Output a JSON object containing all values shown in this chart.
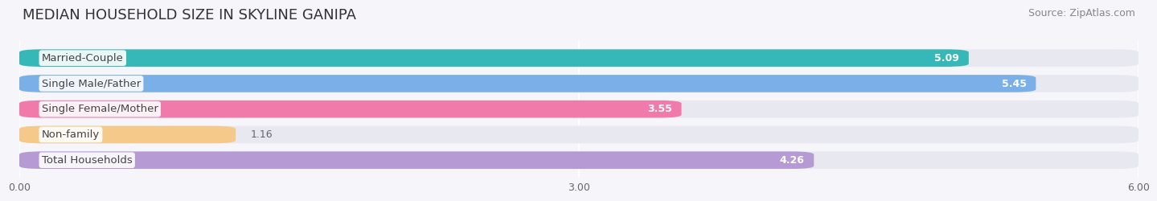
{
  "title": "MEDIAN HOUSEHOLD SIZE IN SKYLINE GANIPA",
  "source": "Source: ZipAtlas.com",
  "categories": [
    "Married-Couple",
    "Single Male/Father",
    "Single Female/Mother",
    "Non-family",
    "Total Households"
  ],
  "values": [
    5.09,
    5.45,
    3.55,
    1.16,
    4.26
  ],
  "bar_colors": [
    "#36b8b8",
    "#7aafe8",
    "#f07aaa",
    "#f5c98a",
    "#b59ad4"
  ],
  "xlim": [
    0,
    6.0
  ],
  "xticks": [
    0.0,
    3.0,
    6.0
  ],
  "xtick_labels": [
    "0.00",
    "3.00",
    "6.00"
  ],
  "title_fontsize": 13,
  "source_fontsize": 9,
  "bar_height": 0.68,
  "background_color": "#f5f5fa",
  "bar_bg_color": "#e8e8f0",
  "label_fontsize": 9.5,
  "value_fontsize": 9
}
